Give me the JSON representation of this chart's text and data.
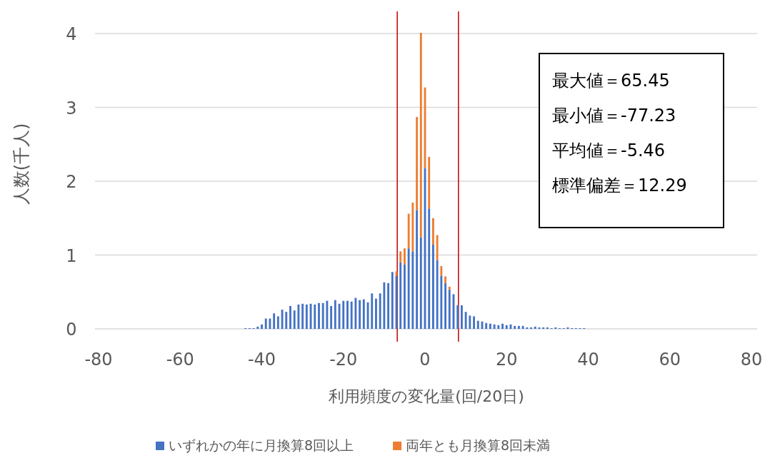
{
  "chart_data": {
    "type": "bar",
    "stacked": true,
    "xlabel": "利用頻度の変化量(回/20日)",
    "ylabel": "人数(千人)",
    "x": [
      -44,
      -43,
      -42,
      -41,
      -40,
      -39,
      -38,
      -37,
      -36,
      -35,
      -34,
      -33,
      -32,
      -31,
      -30,
      -29,
      -28,
      -27,
      -26,
      -25,
      -24,
      -23,
      -22,
      -21,
      -20,
      -19,
      -18,
      -17,
      -16,
      -15,
      -14,
      -13,
      -12,
      -11,
      -10,
      -9,
      -8,
      -7,
      -6,
      -5,
      -4,
      -3,
      -2,
      -1,
      0,
      1,
      2,
      3,
      4,
      5,
      6,
      7,
      8,
      9,
      10,
      11,
      12,
      13,
      14,
      15,
      16,
      17,
      18,
      19,
      20,
      21,
      22,
      23,
      24,
      25,
      26,
      27,
      28,
      29,
      30,
      31,
      32,
      33,
      34,
      35,
      36,
      37,
      38,
      39
    ],
    "series": [
      {
        "name": "いずれかの年に月換算8回以上",
        "color": "#4472c4",
        "values": [
          0.01,
          0.01,
          0.01,
          0.03,
          0.06,
          0.14,
          0.14,
          0.21,
          0.17,
          0.26,
          0.23,
          0.31,
          0.25,
          0.33,
          0.34,
          0.33,
          0.34,
          0.33,
          0.35,
          0.35,
          0.38,
          0.31,
          0.39,
          0.34,
          0.38,
          0.38,
          0.37,
          0.42,
          0.39,
          0.4,
          0.36,
          0.48,
          0.41,
          0.48,
          0.63,
          0.62,
          0.77,
          0.72,
          0.9,
          0.87,
          1.09,
          1.05,
          1.61,
          1.24,
          2.18,
          1.63,
          1.14,
          0.93,
          0.72,
          0.62,
          0.53,
          0.47,
          0.32,
          0.32,
          0.23,
          0.18,
          0.17,
          0.11,
          0.1,
          0.08,
          0.07,
          0.06,
          0.05,
          0.07,
          0.05,
          0.06,
          0.04,
          0.04,
          0.04,
          0.02,
          0.02,
          0.03,
          0.02,
          0.02,
          0.02,
          0.01,
          0.02,
          0.01,
          0.01,
          0.02,
          0.01,
          0.01,
          0.01,
          0.01
        ]
      },
      {
        "name": "両年とも月換算8回未満",
        "color": "#ed7d31",
        "values": [
          null,
          null,
          null,
          null,
          null,
          null,
          null,
          null,
          null,
          null,
          null,
          null,
          null,
          null,
          null,
          null,
          null,
          null,
          null,
          null,
          null,
          null,
          null,
          null,
          null,
          null,
          null,
          null,
          null,
          null,
          null,
          null,
          null,
          null,
          null,
          null,
          null,
          0.06,
          0.15,
          0.22,
          0.47,
          0.66,
          1.26,
          2.77,
          1.09,
          0.7,
          0.36,
          0.34,
          0.13,
          0.09,
          0.04,
          null,
          null,
          null,
          null,
          null,
          null,
          null,
          null,
          null,
          null,
          null,
          null,
          null,
          null,
          null,
          null,
          null,
          null,
          null,
          null,
          null,
          null,
          null,
          null,
          null,
          null,
          null,
          null,
          null,
          null,
          null,
          null,
          null
        ]
      }
    ],
    "xlim": [
      -80,
      80
    ],
    "xticks": [
      -80,
      -60,
      -40,
      -20,
      0,
      20,
      40,
      60,
      80
    ],
    "ylim": [
      0,
      4.3
    ],
    "yticks": [
      0,
      1,
      2,
      3,
      4
    ],
    "grid": "y",
    "legend": "bottom",
    "ref_lines": [
      {
        "axis": "x",
        "value": -6.8,
        "color": "#c00000"
      },
      {
        "axis": "x",
        "value": 8.2,
        "color": "#c00000"
      }
    ],
    "annotations": [
      "最大値＝65.45",
      "最小値＝-77.23",
      "平均値＝-5.46",
      "標準偏差＝12.29"
    ]
  }
}
